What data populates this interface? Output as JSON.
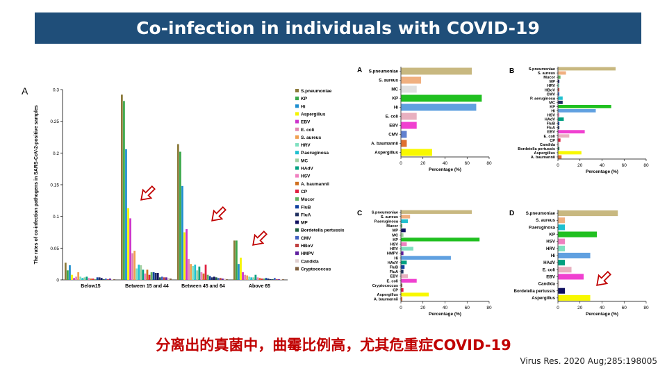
{
  "header": {
    "title": "Co-infection in individuals with COVID-19"
  },
  "caption": "分离出的真菌中，曲霉比例高，尤其危重症COVID-19",
  "citation": "Virus Res. 2020 Aug;285:198005",
  "chart_data": [
    {
      "panel": "A",
      "type": "bar",
      "ylabel": "The rates of  co-infection pathogens in SARS-CoV-2-positive samples",
      "ylim": [
        0,
        0.3
      ],
      "yticks": [
        0,
        0.05,
        0.1,
        0.15,
        0.2,
        0.25,
        0.3
      ],
      "categories": [
        "Below15",
        "Between 15 and 44",
        "Between 45 and 64",
        "Above 65"
      ],
      "series": [
        {
          "name": "S.pneumoniae",
          "color": "#8b7a3a",
          "values": [
            0.027,
            0.292,
            0.214,
            0.062
          ]
        },
        {
          "name": "KP",
          "color": "#3aa84a",
          "values": [
            0.015,
            0.282,
            0.202,
            0.062
          ]
        },
        {
          "name": "Hi",
          "color": "#1f8fd0",
          "values": [
            0.023,
            0.206,
            0.148,
            0.025
          ]
        },
        {
          "name": "Aspergillus",
          "color": "#f4f400",
          "values": [
            0.008,
            0.113,
            0.075,
            0.035
          ]
        },
        {
          "name": "EBV",
          "color": "#cc33cc",
          "values": [
            0.003,
            0.097,
            0.08,
            0.012
          ]
        },
        {
          "name": "E. coli",
          "color": "#e08ab0",
          "values": [
            0.005,
            0.042,
            0.033,
            0.008
          ]
        },
        {
          "name": "S. aureus",
          "color": "#f0a050",
          "values": [
            0.012,
            0.046,
            0.025,
            0.007
          ]
        },
        {
          "name": "HRV",
          "color": "#7fe0c0",
          "values": [
            0.005,
            0.018,
            0.022,
            0.005
          ]
        },
        {
          "name": "P.aeruginosa",
          "color": "#20c0d0",
          "values": [
            0.003,
            0.024,
            0.024,
            0.004
          ]
        },
        {
          "name": "MC",
          "color": "#9ecfa0",
          "values": [
            0.004,
            0.023,
            0.015,
            0.004
          ]
        },
        {
          "name": "HAdV",
          "color": "#00a080",
          "values": [
            0.005,
            0.016,
            0.021,
            0.008
          ]
        },
        {
          "name": "HSV",
          "color": "#f080c0",
          "values": [
            0.003,
            0.01,
            0.012,
            0.004
          ]
        },
        {
          "name": "A. baumannii",
          "color": "#d07020",
          "values": [
            0.002,
            0.016,
            0.01,
            0.003
          ]
        },
        {
          "name": "CP",
          "color": "#e02040",
          "values": [
            0.002,
            0.008,
            0.024,
            0.002
          ]
        },
        {
          "name": "Mucor",
          "color": "#60b060",
          "values": [
            0.001,
            0.012,
            0.008,
            0.002
          ]
        },
        {
          "name": "FluB",
          "color": "#1040a0",
          "values": [
            0.004,
            0.012,
            0.006,
            0.003
          ]
        },
        {
          "name": "FluA",
          "color": "#203060",
          "values": [
            0.004,
            0.011,
            0.004,
            0.002
          ]
        },
        {
          "name": "MP",
          "color": "#101060",
          "values": [
            0.003,
            0.011,
            0.005,
            0.001
          ]
        },
        {
          "name": "Bordetella pertussis",
          "color": "#206040",
          "values": [
            0.001,
            0.004,
            0.004,
            0.001
          ]
        },
        {
          "name": "CMV",
          "color": "#4060c0",
          "values": [
            0.002,
            0.005,
            0.003,
            0.003
          ]
        },
        {
          "name": "HBoV",
          "color": "#c04040",
          "values": [
            0.001,
            0.004,
            0.003,
            0.001
          ]
        },
        {
          "name": "HMPV",
          "color": "#6020a0",
          "values": [
            0.002,
            0.004,
            0.002,
            0.001
          ]
        },
        {
          "name": "Candida",
          "color": "#e0d0d0",
          "values": [
            0.001,
            0.003,
            0.002,
            0.001
          ]
        },
        {
          "name": "Cryptococcus",
          "color": "#806040",
          "values": [
            0.001,
            0.002,
            0.001,
            0.001
          ]
        }
      ]
    },
    {
      "panel": "A",
      "type": "bar",
      "orientation": "horizontal",
      "xlabel": "Percentage (%)",
      "xlim": [
        0,
        80
      ],
      "xticks": [
        0,
        20,
        40,
        60,
        80
      ],
      "categories": [
        "S.pneumoniae",
        "S. aureus",
        "MC",
        "KP",
        "Hi",
        "E. coli",
        "EBV",
        "CMV",
        "A. baumannii",
        "Aspergillus"
      ],
      "values": [
        64,
        18,
        14,
        73,
        68,
        14,
        14,
        5,
        5,
        28
      ],
      "colors": [
        "#c8b880",
        "#f0b080",
        "#e0e0e0",
        "#20c020",
        "#60a0e0",
        "#e8b0c0",
        "#f040d0",
        "#6080d0",
        "#e07030",
        "#f8f800"
      ]
    },
    {
      "panel": "B",
      "type": "bar",
      "orientation": "horizontal",
      "xlabel": "Percentage (%)",
      "xlim": [
        0,
        80
      ],
      "xticks": [
        0,
        20,
        40,
        60,
        80
      ],
      "categories": [
        "S.pneumoniae",
        "S. aureus",
        "Mucor",
        "MP",
        "HRV",
        "HBoV",
        "CMV",
        "P. aeruginosa",
        "MC",
        "KP",
        "Hi",
        "HSV",
        "HAdV",
        "FluB",
        "FluA",
        "EBV",
        "E. coli",
        "CP",
        "Candida",
        "Bordetella pertussis",
        "Aspergillus",
        "A. baumannii"
      ],
      "values": [
        52,
        7,
        2,
        1,
        1,
        1,
        1,
        4,
        4,
        48,
        34,
        1,
        5,
        1,
        1,
        24,
        10,
        2,
        1,
        1,
        21,
        3
      ],
      "colors": [
        "#c8b880",
        "#f0b080",
        "#60b060",
        "#101060",
        "#7fe0c0",
        "#c04040",
        "#4060c0",
        "#20c0d0",
        "#203060",
        "#20c020",
        "#60a0e0",
        "#f080c0",
        "#00a080",
        "#1040a0",
        "#203060",
        "#f040d0",
        "#e8b0c0",
        "#e02040",
        "#e0d0d0",
        "#206040",
        "#f8f800",
        "#e07030"
      ]
    },
    {
      "panel": "C",
      "type": "bar",
      "orientation": "horizontal",
      "xlabel": "Percentage (%)",
      "xlim": [
        0,
        80
      ],
      "xticks": [
        0,
        20,
        40,
        60,
        80
      ],
      "categories": [
        "S.pneumoniae",
        "S. aureus",
        "P.aeruginosa",
        "Mucor",
        "MP",
        "MC",
        "KP",
        "HSV",
        "HRV",
        "HMPV",
        "Hi",
        "HAdV",
        "FluB",
        "FluA",
        "EBV",
        "E. coli",
        "Cryptococcus",
        "CP",
        "Aspergillus",
        "A. baumannii"
      ],
      "values": [
        64,
        8,
        6,
        1,
        4,
        2,
        71,
        5,
        11,
        2,
        45,
        5,
        3,
        2,
        6,
        14,
        1,
        2,
        25,
        1
      ],
      "colors": [
        "#c8b880",
        "#f0b080",
        "#20c0d0",
        "#60b060",
        "#101060",
        "#9ecfa0",
        "#20c020",
        "#f080c0",
        "#7fe0c0",
        "#6020a0",
        "#60a0e0",
        "#00a080",
        "#1040a0",
        "#203060",
        "#e8b0c0",
        "#f040d0",
        "#806040",
        "#e02040",
        "#f8f800",
        "#e07030"
      ]
    },
    {
      "panel": "D",
      "type": "bar",
      "orientation": "horizontal",
      "xlabel": "Percentage (%)",
      "xlim": [
        0,
        80
      ],
      "xticks": [
        0,
        20,
        40,
        60,
        80
      ],
      "categories": [
        "S.pneumoniae",
        "S. aureus",
        "P.aeruginosa",
        "KP",
        "HSV",
        "HRV",
        "Hi",
        "HAdV",
        "E. coli",
        "EBV",
        "Candida",
        "Bordetella pertussis",
        "Aspergillus"
      ],
      "values": [
        54,
        6,
        6,
        35,
        6,
        6,
        29,
        6,
        12,
        23,
        1,
        6,
        29
      ],
      "colors": [
        "#c8b880",
        "#f0b080",
        "#20c0d0",
        "#20c020",
        "#f080c0",
        "#7fe0c0",
        "#60a0e0",
        "#00a080",
        "#e8b0c0",
        "#f040d0",
        "#e0d0d0",
        "#101060",
        "#f8f800"
      ]
    }
  ]
}
